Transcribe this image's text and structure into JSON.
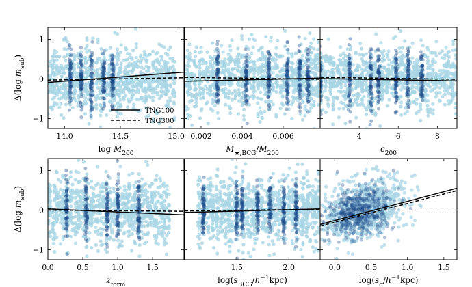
{
  "figure_type": "scatter-grid",
  "legend": [
    {
      "label": "TNG100",
      "style": "solid"
    },
    {
      "label": "TNG300",
      "style": "dashed"
    }
  ],
  "colors": {
    "tng300_points": "#a9d6e5",
    "tng100_points": "#1f4e8c",
    "fit_line": "#000000",
    "zero_line": "#000000"
  },
  "chart_data": [
    {
      "type": "scatter",
      "row": 0,
      "col": 0,
      "xlabel": "log M200",
      "ylabel": "Δ(log m_sub)",
      "xlim": [
        13.85,
        15.07
      ],
      "ylim": [
        -1.25,
        1.3
      ],
      "xticks": [
        {
          "v": 14.0,
          "label": "14.0"
        },
        {
          "v": 14.5,
          "label": "14.5"
        },
        {
          "v": 15.0,
          "label": "15.0"
        }
      ],
      "yticks": [
        {
          "v": 1,
          "label": "1"
        },
        {
          "v": 0,
          "label": "0"
        },
        {
          "v": -1,
          "label": "−1"
        }
      ],
      "dark_columns": [
        14.05,
        14.15,
        14.24,
        14.35,
        14.43
      ],
      "light_range": [
        13.85,
        15.0
      ],
      "fit_TNG100": {
        "x": [
          13.85,
          15.07
        ],
        "y": [
          -0.09,
          0.17
        ]
      },
      "fit_TNG300": {
        "x": [
          13.85,
          15.07
        ],
        "y": [
          -0.03,
          0.03
        ]
      },
      "show_legend": true
    },
    {
      "type": "scatter",
      "row": 0,
      "col": 1,
      "xlabel": "M★,BCG / M200",
      "ylabel": "",
      "xlim": [
        0.0012,
        0.0078
      ],
      "ylim": [
        -1.25,
        1.3
      ],
      "xticks": [
        {
          "v": 0.002,
          "label": "0.002"
        },
        {
          "v": 0.004,
          "label": "0.004"
        },
        {
          "v": 0.006,
          "label": "0.006"
        }
      ],
      "yticks": [],
      "dark_columns": [
        0.0028,
        0.0042,
        0.0053,
        0.0062,
        0.0068,
        0.0072
      ],
      "light_range": [
        0.0012,
        0.0078
      ],
      "fit_TNG100": {
        "x": [
          0.0012,
          0.0078
        ],
        "y": [
          -0.06,
          0.02
        ]
      },
      "fit_TNG300": {
        "x": [
          0.0012,
          0.0078
        ],
        "y": [
          0.04,
          -0.01
        ]
      },
      "show_legend": false
    },
    {
      "type": "scatter",
      "row": 0,
      "col": 2,
      "xlabel": "c200",
      "ylabel": "",
      "xlim": [
        2.0,
        9.0
      ],
      "ylim": [
        -1.25,
        1.3
      ],
      "xticks": [
        {
          "v": 4,
          "label": "4"
        },
        {
          "v": 6,
          "label": "6"
        },
        {
          "v": 8,
          "label": "8"
        }
      ],
      "yticks": [],
      "dark_columns": [
        2.0,
        3.5,
        4.6,
        5.0,
        5.9,
        6.5,
        7.2
      ],
      "light_range": [
        2.0,
        9.0
      ],
      "fit_TNG100": {
        "x": [
          2.0,
          9.0
        ],
        "y": [
          0.01,
          -0.05
        ]
      },
      "fit_TNG300": {
        "x": [
          2.0,
          9.0
        ],
        "y": [
          0.04,
          -0.01
        ]
      },
      "show_legend": false
    },
    {
      "type": "scatter",
      "row": 1,
      "col": 0,
      "xlabel": "z_form",
      "ylabel": "Δ(log m_sub)",
      "xlim": [
        0.0,
        1.95
      ],
      "ylim": [
        -1.25,
        1.3
      ],
      "xticks": [
        {
          "v": 0.0,
          "label": "0.0"
        },
        {
          "v": 0.5,
          "label": "0.5"
        },
        {
          "v": 1.0,
          "label": "1.0"
        },
        {
          "v": 1.5,
          "label": "1.5"
        }
      ],
      "yticks": [
        {
          "v": 1,
          "label": "1"
        },
        {
          "v": 0,
          "label": "0"
        },
        {
          "v": -1,
          "label": "−1"
        }
      ],
      "dark_columns": [
        0.27,
        0.55,
        0.85,
        1.0,
        1.3
      ],
      "light_range": [
        0.0,
        1.75
      ],
      "fit_TNG100": {
        "x": [
          0.0,
          1.95
        ],
        "y": [
          0.03,
          -0.12
        ]
      },
      "fit_TNG300": {
        "x": [
          0.0,
          1.95
        ],
        "y": [
          0.0,
          -0.03
        ]
      },
      "show_legend": false
    },
    {
      "type": "scatter",
      "row": 1,
      "col": 1,
      "xlabel": "log(s_BCG / h⁻¹kpc)",
      "ylabel": "",
      "xlim": [
        1.0,
        2.3
      ],
      "ylim": [
        -1.25,
        1.3
      ],
      "xticks": [
        {
          "v": 1.5,
          "label": "1.5"
        },
        {
          "v": 2.0,
          "label": "2.0"
        }
      ],
      "yticks": [],
      "dark_columns": [
        1.18,
        1.5,
        1.55,
        1.7,
        1.82,
        1.95,
        2.07
      ],
      "light_range": [
        1.12,
        2.3
      ],
      "fit_TNG100": {
        "x": [
          1.0,
          2.3
        ],
        "y": [
          -0.06,
          0.03
        ]
      },
      "fit_TNG300": {
        "x": [
          1.0,
          2.3
        ],
        "y": [
          -0.02,
          0.02
        ]
      },
      "show_legend": false
    },
    {
      "type": "scatter",
      "row": 1,
      "col": 2,
      "xlabel": "log(s_g / h⁻¹kpc)",
      "ylabel": "",
      "xlim": [
        -0.2,
        1.68
      ],
      "ylim": [
        -1.25,
        1.3
      ],
      "xticks": [
        {
          "v": 0.0,
          "label": "0.0"
        },
        {
          "v": 0.5,
          "label": "0.5"
        },
        {
          "v": 1.0,
          "label": "1.0"
        },
        {
          "v": 1.5,
          "label": "1.5"
        }
      ],
      "yticks": [],
      "cloud": {
        "center": [
          0.4,
          0.02
        ],
        "spread": [
          0.28,
          0.35
        ],
        "slope": 0.45
      },
      "fit_TNG100": {
        "x": [
          -0.2,
          1.68
        ],
        "y": [
          -0.36,
          0.55
        ]
      },
      "fit_TNG300": {
        "x": [
          -0.2,
          1.68
        ],
        "y": [
          -0.4,
          0.49
        ]
      },
      "show_legend": false
    }
  ]
}
